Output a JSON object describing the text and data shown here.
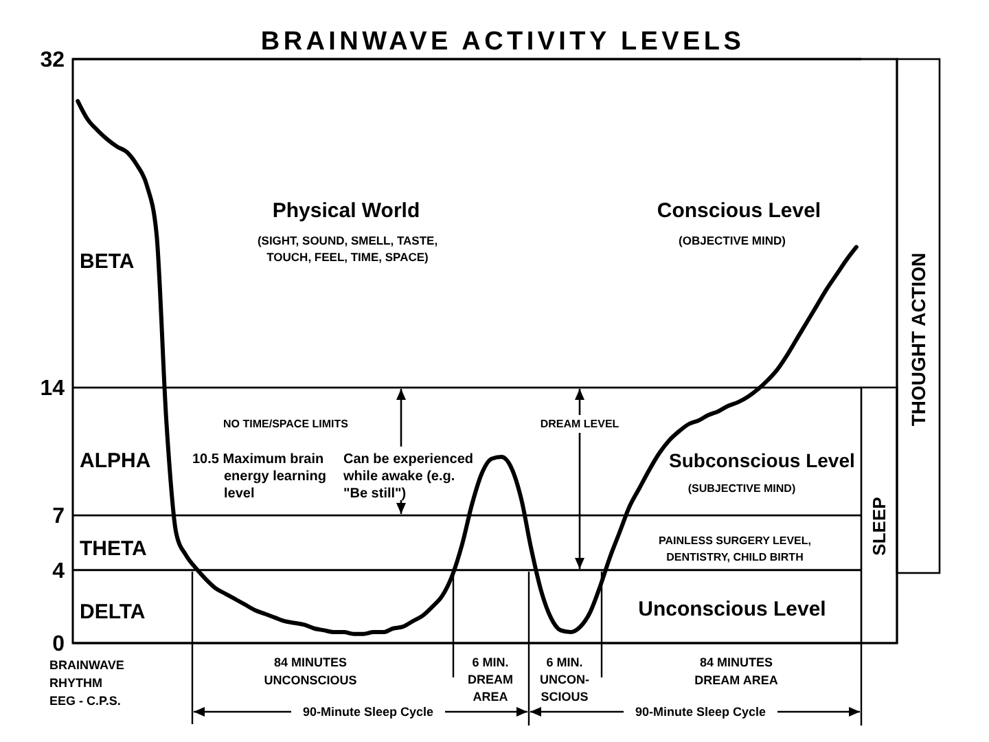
{
  "chart_data": {
    "type": "line",
    "title": "BRAINWAVE ACTIVITY LEVELS",
    "ylabel": "BRAINWAVE\nRHYTHM\nEEG - C.P.S.",
    "categories": [
      null,
      null,
      null,
      null,
      null,
      null,
      null,
      null,
      null,
      null,
      null,
      null,
      null,
      null,
      null,
      null,
      null,
      null,
      null,
      null,
      null,
      null,
      null,
      null,
      null,
      null,
      null,
      null,
      null,
      null,
      null,
      null,
      null,
      null,
      null,
      null,
      null,
      null,
      null,
      null,
      null,
      null,
      null,
      null,
      null,
      null,
      null,
      null,
      null,
      null,
      null,
      null,
      null,
      null,
      null,
      null,
      null,
      null,
      null,
      null,
      null,
      null,
      null,
      null,
      null,
      null,
      null,
      null,
      null,
      null,
      null,
      null,
      null,
      null,
      null,
      null,
      null,
      null,
      null,
      null
    ],
    "series": [
      {
        "color": "#000000",
        "values": [
          29.7,
          28.7,
          28.1,
          27.6,
          27.2,
          26.9,
          26.2,
          25.1,
          22.4,
          12.1,
          6.0,
          4.8,
          4.1,
          3.5,
          3.0,
          2.7,
          2.4,
          2.1,
          1.8,
          1.6,
          1.4,
          1.2,
          1.1,
          1.0,
          0.8,
          0.7,
          0.6,
          0.6,
          0.5,
          0.5,
          0.6,
          0.6,
          0.8,
          0.9,
          1.2,
          1.5,
          2.0,
          2.6,
          3.7,
          5.4,
          7.6,
          9.3,
          10.1,
          10.2,
          9.6,
          7.9,
          5.2,
          2.9,
          1.4,
          0.7,
          0.6,
          0.9,
          1.7,
          3.1,
          4.7,
          6.1,
          7.5,
          8.5,
          9.5,
          10.4,
          11.1,
          11.6,
          12.0,
          12.2,
          12.5,
          12.7,
          13.0,
          13.2,
          13.5,
          13.9,
          14.4,
          15.0,
          15.8,
          16.7,
          17.6,
          18.5,
          19.4,
          20.2,
          21.0,
          21.7
        ]
      }
    ],
    "ylim": [
      0,
      32
    ],
    "yticks": [
      0,
      4,
      7,
      14,
      32
    ],
    "grid": "y",
    "annotations": [
      "Physical World",
      "(SIGHT, SOUND, SMELL, TASTE,\nTOUCH, FEEL, TIME, SPACE)",
      "Conscious Level",
      "(OBJECTIVE MIND)",
      "NO TIME/SPACE LIMITS",
      "10.5 Maximum brain\nenergy learning\nlevel",
      "Can be experienced\nwhile awake (e.g.\n\"Be still\")",
      "DREAM LEVEL",
      "Subconscious Level",
      "(SUBJECTIVE MIND)",
      "PAINLESS SURGERY LEVEL,\nDENTISTRY, CHILD BIRTH",
      "Unconscious Level",
      "84 MINUTES\nUNCONSCIOUS",
      "6 MIN.\nDREAM\nAREA",
      "6 MIN.\nUNCON-\nSCIOUS",
      "84 MINUTES\nDREAM AREA",
      "90-Minute Sleep Cycle",
      "90-Minute Sleep Cycle",
      "SLEEP",
      "THOUGHT ACTION",
      "BETA",
      "ALPHA",
      "THETA",
      "DELTA"
    ]
  }
}
